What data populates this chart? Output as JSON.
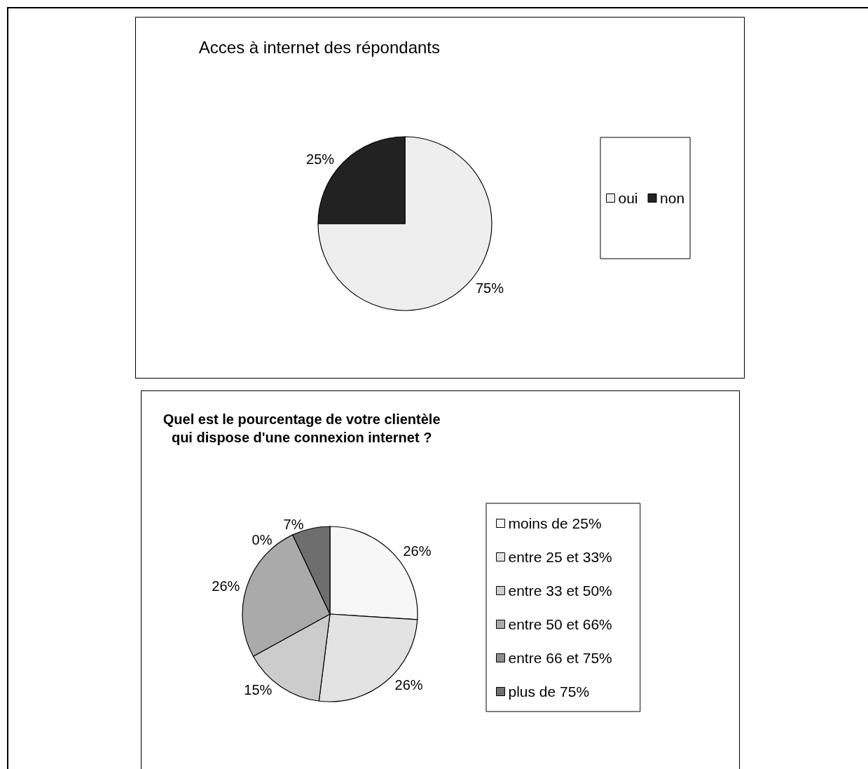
{
  "chart_data": [
    {
      "type": "pie",
      "title": "Acces à internet des répondants",
      "categories": [
        "oui",
        "non"
      ],
      "values": [
        75,
        25
      ],
      "value_labels": [
        "75%",
        "25%"
      ],
      "colors": [
        "#eeeeee",
        "#222222"
      ],
      "legend": "right"
    },
    {
      "type": "pie",
      "title": "Quel est le pourcentage de votre clientèle\nqui dispose d'une connexion internet ?",
      "categories": [
        "moins de 25%",
        "entre 25 et 33%",
        "entre 33 et 50%",
        "entre 50 et 66%",
        "entre 66 et 75%",
        "plus de 75%"
      ],
      "values": [
        26,
        26,
        15,
        26,
        0,
        7
      ],
      "value_labels": [
        "26%",
        "26%",
        "15%",
        "26%",
        "0%",
        "7%"
      ],
      "colors": [
        "#f7f7f7",
        "#e3e3e3",
        "#cccccc",
        "#aaaaaa",
        "#8c8c8c",
        "#6e6e6e"
      ],
      "legend": "right"
    }
  ]
}
